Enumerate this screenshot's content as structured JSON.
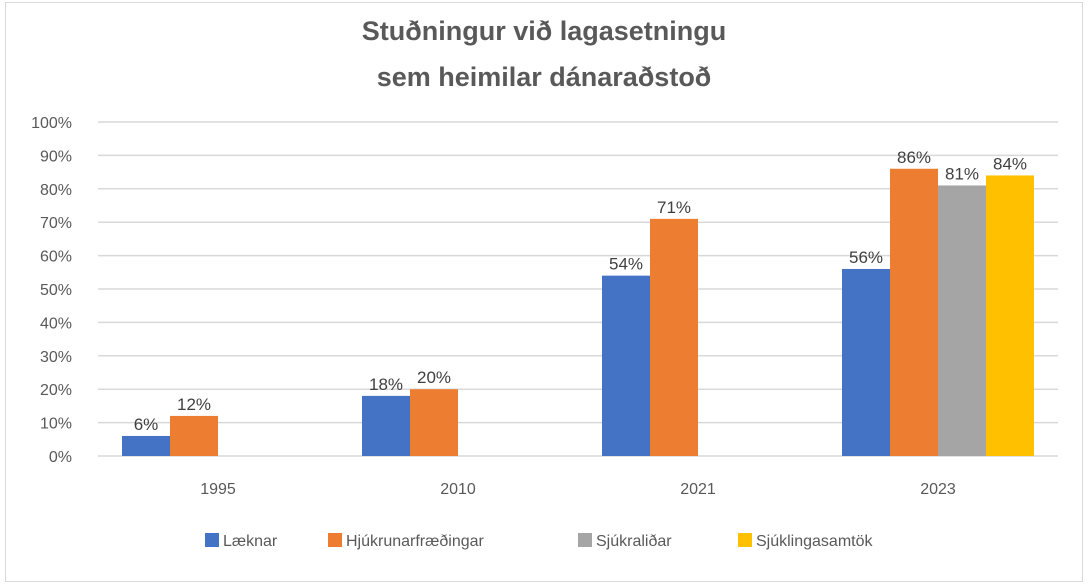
{
  "chart_data": {
    "type": "bar",
    "title": [
      "Stuðningur við lagasetningu",
      "sem heimilar dánaraðstoð"
    ],
    "categories": [
      "1995",
      "2010",
      "2021",
      "2023"
    ],
    "series": [
      {
        "name": "Læknar",
        "color": "#4472c4",
        "values": [
          6,
          18,
          54,
          56
        ]
      },
      {
        "name": "Hjúkrunarfræðingar",
        "color": "#ed7d31",
        "values": [
          12,
          20,
          71,
          86
        ]
      },
      {
        "name": "Sjúkraliðar",
        "color": "#a5a5a5",
        "values": [
          null,
          null,
          null,
          81
        ]
      },
      {
        "name": "Sjúklingasamtök",
        "color": "#ffc000",
        "values": [
          null,
          null,
          null,
          84
        ]
      }
    ],
    "ylim": [
      0,
      100
    ],
    "yticks": [
      "0%",
      "10%",
      "20%",
      "30%",
      "40%",
      "50%",
      "60%",
      "70%",
      "80%",
      "90%",
      "100%"
    ],
    "xlabel": "",
    "ylabel": "",
    "grid": true,
    "legend": "bottom"
  }
}
